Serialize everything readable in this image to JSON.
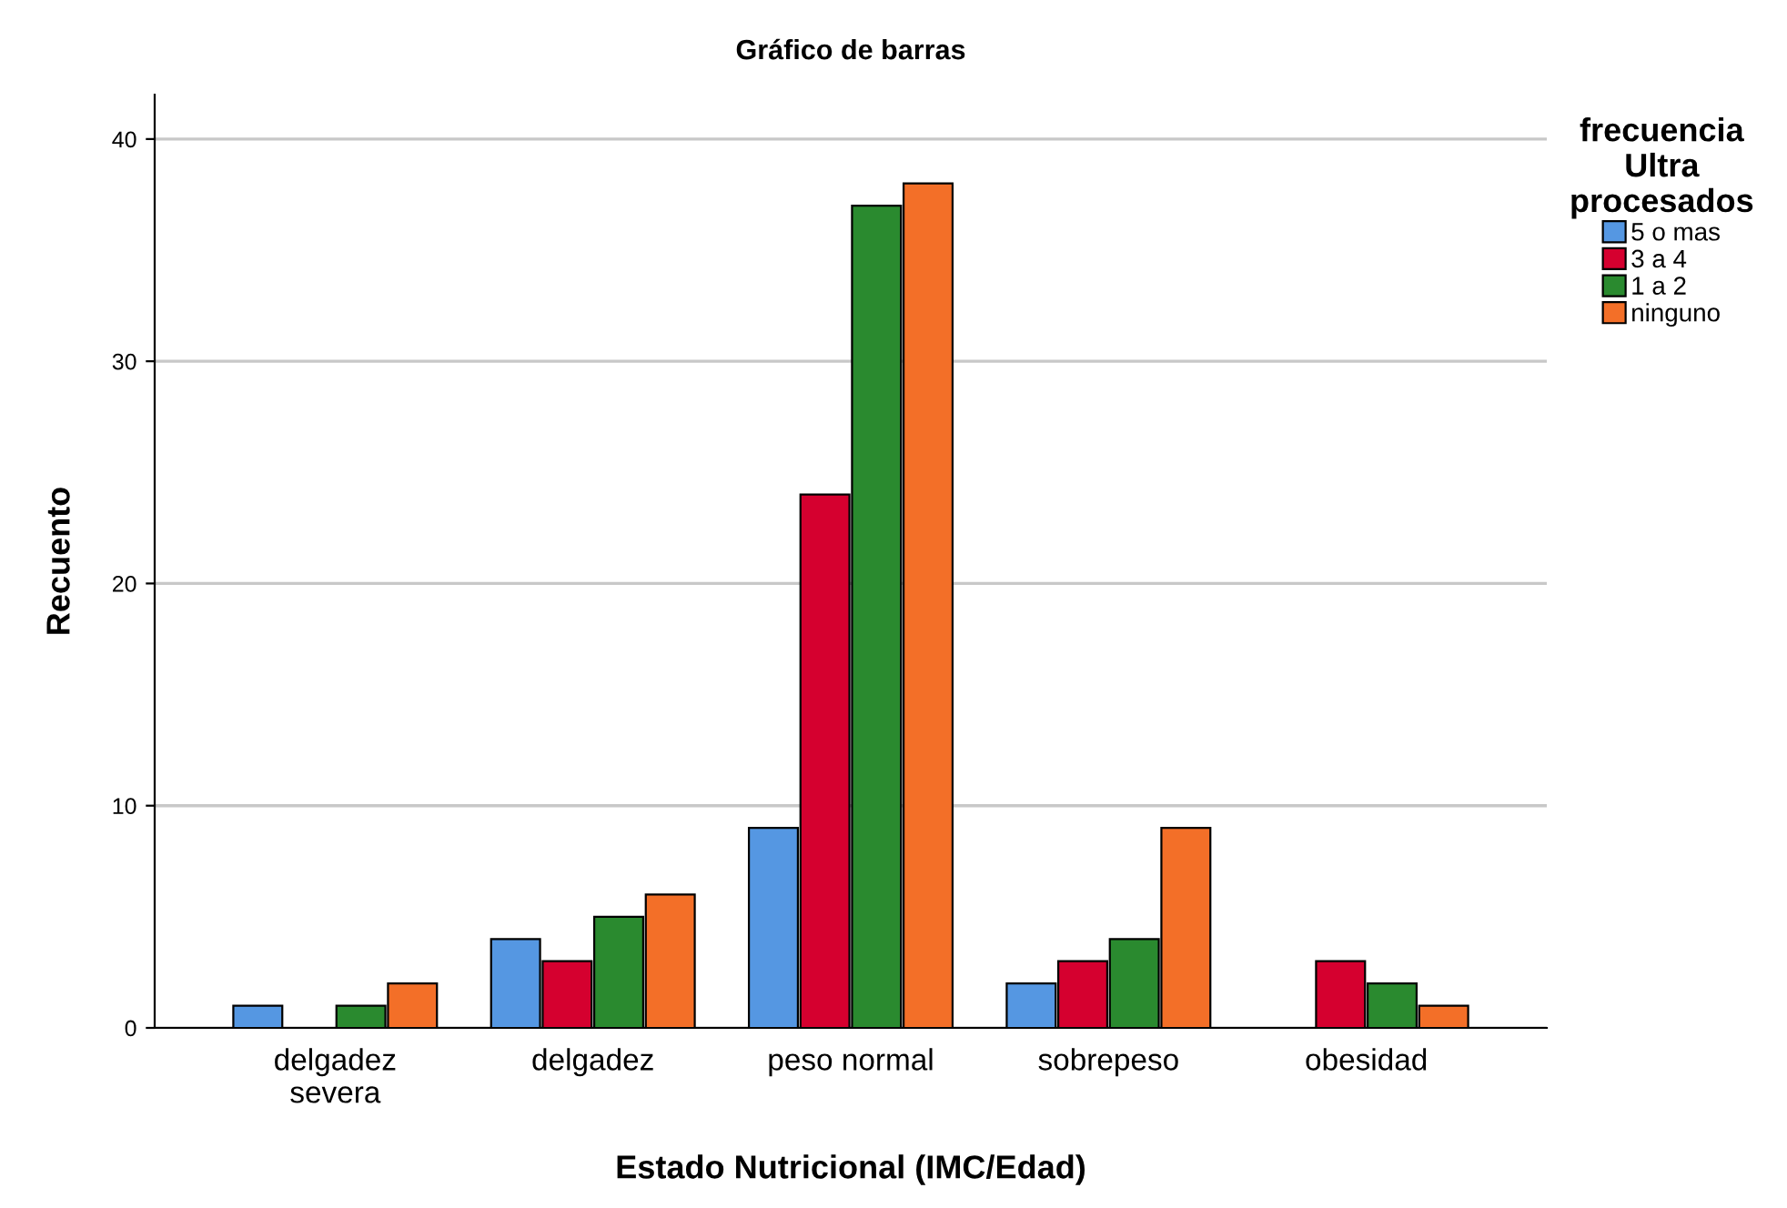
{
  "chart_data": {
    "type": "bar",
    "title": "Gráfico de barras",
    "xlabel": "Estado Nutricional (IMC/Edad)",
    "ylabel": "Recuento",
    "legend_title": "frecuencia\nUltra\nprocesados",
    "categories": [
      "delgadez\nsevera",
      "delgadez",
      "peso normal",
      "sobrepeso",
      "obesidad"
    ],
    "series": [
      {
        "name": "5 o mas",
        "color": "#5597e2",
        "values": [
          1,
          4,
          9,
          2,
          null
        ]
      },
      {
        "name": "3 a 4",
        "color": "#d5002f",
        "values": [
          null,
          3,
          24,
          3,
          3
        ]
      },
      {
        "name": "1 a 2",
        "color": "#2a8a2f",
        "values": [
          1,
          5,
          37,
          4,
          2
        ]
      },
      {
        "name": "ninguno",
        "color": "#f36f28",
        "values": [
          2,
          6,
          38,
          9,
          1
        ]
      }
    ],
    "ylim": [
      0,
      42
    ],
    "yticks": [
      0,
      10,
      20,
      30,
      40
    ],
    "grid": "y",
    "legend": "right"
  }
}
